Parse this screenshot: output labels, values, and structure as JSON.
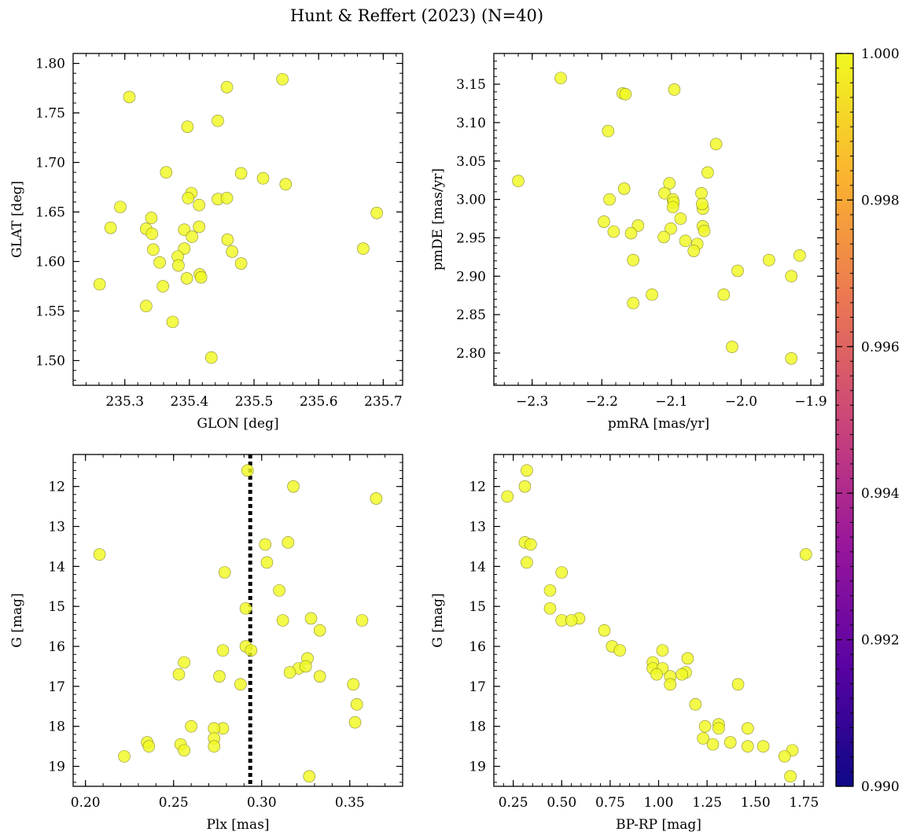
{
  "figure_title": "Hunt & Reffert (2023) (N=40)",
  "colors": {
    "point_fill": "#f0f921",
    "point_edge": "#8a8a30",
    "vline": "#000000",
    "colormap": [
      "#0d0887",
      "#5b02a3",
      "#9a179b",
      "#cb4678",
      "#eb7852",
      "#fbb32f",
      "#f0f921"
    ]
  },
  "colorbar": {
    "min": 0.99,
    "max": 1.0,
    "ticks": [
      0.99,
      0.992,
      0.994,
      0.996,
      0.998,
      1.0
    ],
    "tick_labels": [
      "0.990",
      "0.992",
      "0.994",
      "0.996",
      "0.998",
      "1.000"
    ]
  },
  "chart_data": [
    {
      "type": "scatter",
      "id": "glon-glat",
      "xlabel": "GLON [deg]",
      "ylabel": "GLAT [deg]",
      "xlim": [
        235.22,
        235.73
      ],
      "ylim": [
        1.475,
        1.81
      ],
      "y_inverted": false,
      "xticks": [
        235.3,
        235.4,
        235.5,
        235.6,
        235.7
      ],
      "xtick_labels": [
        "235.3",
        "235.4",
        "235.5",
        "235.6",
        "235.7"
      ],
      "yticks": [
        1.5,
        1.55,
        1.6,
        1.65,
        1.7,
        1.75,
        1.8
      ],
      "ytick_labels": [
        "1.50",
        "1.55",
        "1.60",
        "1.65",
        "1.70",
        "1.75",
        "1.80"
      ],
      "x_minor": 0.02,
      "y_minor": 0.01,
      "x": [
        235.307,
        235.544,
        235.458,
        235.397,
        235.444,
        235.364,
        235.48,
        235.514,
        235.549,
        235.403,
        235.444,
        235.398,
        235.458,
        235.415,
        235.69,
        235.293,
        235.278,
        235.341,
        235.333,
        235.415,
        235.392,
        235.342,
        235.404,
        235.459,
        235.392,
        235.344,
        235.466,
        235.669,
        235.382,
        235.354,
        235.48,
        235.383,
        235.416,
        235.261,
        235.396,
        235.418,
        235.359,
        235.333,
        235.374,
        235.434
      ],
      "y": [
        1.766,
        1.784,
        1.776,
        1.736,
        1.742,
        1.69,
        1.689,
        1.684,
        1.678,
        1.669,
        1.663,
        1.664,
        1.664,
        1.657,
        1.649,
        1.655,
        1.634,
        1.644,
        1.633,
        1.635,
        1.632,
        1.628,
        1.625,
        1.622,
        1.613,
        1.612,
        1.61,
        1.613,
        1.605,
        1.599,
        1.598,
        1.596,
        1.587,
        1.577,
        1.583,
        1.584,
        1.575,
        1.555,
        1.539,
        1.503
      ],
      "c": [
        1,
        1,
        1,
        1,
        1,
        1,
        1,
        1,
        1,
        1,
        1,
        1,
        1,
        1,
        1,
        1,
        1,
        1,
        1,
        1,
        1,
        1,
        1,
        1,
        1,
        1,
        1,
        1,
        1,
        1,
        1,
        1,
        1,
        1,
        1,
        1,
        1,
        1,
        1,
        1
      ],
      "vline": null
    },
    {
      "type": "scatter",
      "id": "pmra-pmde",
      "xlabel": "pmRA [mas/yr]",
      "ylabel": "pmDE [mas/yr]",
      "xlim": [
        -2.355,
        -1.882
      ],
      "ylim": [
        2.758,
        3.19
      ],
      "y_inverted": false,
      "xticks": [
        -2.3,
        -2.2,
        -2.1,
        -2.0,
        -1.9
      ],
      "xtick_labels": [
        "−2.3",
        "−2.2",
        "−2.1",
        "−2.0",
        "−1.9"
      ],
      "yticks": [
        2.8,
        2.85,
        2.9,
        2.95,
        3.0,
        3.05,
        3.1,
        3.15
      ],
      "ytick_labels": [
        "2.80",
        "2.85",
        "2.90",
        "2.95",
        "3.00",
        "3.05",
        "3.10",
        "3.15"
      ],
      "x_minor": 0.02,
      "y_minor": 0.01,
      "x": [
        -2.259,
        -2.17,
        -2.166,
        -2.096,
        -2.191,
        -2.036,
        -2.048,
        -2.32,
        -2.103,
        -2.11,
        -2.057,
        -2.098,
        -2.189,
        -2.168,
        -2.097,
        -2.098,
        -2.055,
        -2.087,
        -2.056,
        -2.197,
        -2.148,
        -2.055,
        -2.053,
        -2.101,
        -2.183,
        -2.158,
        -2.111,
        -2.08,
        -2.063,
        -2.068,
        -1.96,
        -1.916,
        -2.155,
        -2.005,
        -1.928,
        -2.025,
        -2.128,
        -2.155,
        -2.013,
        -1.928
      ],
      "y": [
        3.158,
        3.138,
        3.137,
        3.143,
        3.089,
        3.072,
        3.035,
        3.024,
        3.021,
        3.008,
        3.008,
        3.0,
        3.0,
        3.014,
        2.996,
        2.99,
        2.988,
        2.975,
        2.994,
        2.971,
        2.966,
        2.965,
        2.959,
        2.962,
        2.958,
        2.956,
        2.951,
        2.946,
        2.942,
        2.933,
        2.921,
        2.927,
        2.921,
        2.907,
        2.9,
        2.876,
        2.876,
        2.865,
        2.808,
        2.793
      ],
      "c": [
        1,
        1,
        1,
        1,
        1,
        1,
        1,
        1,
        1,
        1,
        1,
        1,
        1,
        1,
        1,
        1,
        1,
        1,
        1,
        1,
        1,
        1,
        1,
        1,
        1,
        1,
        1,
        1,
        1,
        1,
        1,
        1,
        1,
        1,
        1,
        1,
        1,
        1,
        1,
        1
      ],
      "vline": null
    },
    {
      "type": "scatter",
      "id": "plx-g",
      "xlabel": "Plx [mas]",
      "ylabel": "G [mag]",
      "xlim": [
        0.193,
        0.38
      ],
      "ylim": [
        11.2,
        19.5
      ],
      "y_inverted": true,
      "xticks": [
        0.2,
        0.25,
        0.3,
        0.35
      ],
      "xtick_labels": [
        "0.20",
        "0.25",
        "0.30",
        "0.35"
      ],
      "yticks": [
        12,
        13,
        14,
        15,
        16,
        17,
        18,
        19
      ],
      "ytick_labels": [
        "12",
        "13",
        "14",
        "15",
        "16",
        "17",
        "18",
        "19"
      ],
      "x_minor": 0.01,
      "y_minor": 0.2,
      "x": [
        0.292,
        0.318,
        0.365,
        0.208,
        0.302,
        0.315,
        0.303,
        0.279,
        0.31,
        0.291,
        0.328,
        0.357,
        0.312,
        0.333,
        0.291,
        0.278,
        0.294,
        0.326,
        0.256,
        0.321,
        0.316,
        0.325,
        0.253,
        0.276,
        0.333,
        0.352,
        0.288,
        0.354,
        0.353,
        0.26,
        0.278,
        0.273,
        0.273,
        0.235,
        0.236,
        0.254,
        0.273,
        0.256,
        0.222,
        0.327
      ],
      "y": [
        11.6,
        12.0,
        12.3,
        13.7,
        13.45,
        13.4,
        13.9,
        14.15,
        14.6,
        15.05,
        15.3,
        15.35,
        15.35,
        15.6,
        16.0,
        16.1,
        16.1,
        16.3,
        16.4,
        16.55,
        16.65,
        16.5,
        16.7,
        16.75,
        16.75,
        16.95,
        16.95,
        17.45,
        17.9,
        18.0,
        18.05,
        18.05,
        18.3,
        18.4,
        18.5,
        18.45,
        18.5,
        18.6,
        18.75,
        19.25
      ],
      "c": [
        1,
        1,
        1,
        1,
        1,
        1,
        1,
        1,
        1,
        1,
        1,
        1,
        1,
        1,
        1,
        1,
        1,
        1,
        1,
        1,
        1,
        1,
        1,
        1,
        1,
        1,
        1,
        1,
        1,
        1,
        1,
        1,
        1,
        1,
        1,
        1,
        1,
        1,
        1,
        1
      ],
      "vline": 0.2935
    },
    {
      "type": "scatter",
      "id": "bprp-g",
      "xlabel": "BP-RP [mag]",
      "ylabel": "G [mag]",
      "xlim": [
        0.15,
        1.85
      ],
      "ylim": [
        11.2,
        19.5
      ],
      "y_inverted": true,
      "xticks": [
        0.25,
        0.5,
        0.75,
        1.0,
        1.25,
        1.5,
        1.75
      ],
      "xtick_labels": [
        "0.25",
        "0.50",
        "0.75",
        "1.00",
        "1.25",
        "1.50",
        "1.75"
      ],
      "x_minor": 0.05,
      "y_minor": 0.2,
      "yticks": [
        12,
        13,
        14,
        15,
        16,
        17,
        18,
        19
      ],
      "ytick_labels": [
        "12",
        "13",
        "14",
        "15",
        "16",
        "17",
        "18",
        "19"
      ],
      "x": [
        0.32,
        0.31,
        0.22,
        0.31,
        0.34,
        0.32,
        1.76,
        0.5,
        0.44,
        0.44,
        0.59,
        0.5,
        0.55,
        0.72,
        0.76,
        0.8,
        1.02,
        1.15,
        0.97,
        0.97,
        1.02,
        0.99,
        1.14,
        1.12,
        1.06,
        1.06,
        1.41,
        1.19,
        1.31,
        1.24,
        1.31,
        1.46,
        1.23,
        1.37,
        1.28,
        1.46,
        1.54,
        1.69,
        1.65,
        1.68
      ],
      "y": [
        11.6,
        12.0,
        12.25,
        13.4,
        13.45,
        13.9,
        13.7,
        14.15,
        14.6,
        15.05,
        15.3,
        15.35,
        15.35,
        15.6,
        16.0,
        16.1,
        16.1,
        16.3,
        16.4,
        16.55,
        16.55,
        16.7,
        16.65,
        16.7,
        16.75,
        16.95,
        16.95,
        17.45,
        17.95,
        18.0,
        18.05,
        18.05,
        18.3,
        18.4,
        18.45,
        18.5,
        18.5,
        18.6,
        18.75,
        19.25
      ],
      "c": [
        1,
        1,
        1,
        1,
        1,
        1,
        1,
        1,
        1,
        1,
        1,
        1,
        1,
        1,
        1,
        1,
        1,
        1,
        1,
        1,
        1,
        1,
        1,
        1,
        1,
        1,
        1,
        1,
        1,
        1,
        1,
        1,
        1,
        1,
        1,
        1,
        1,
        1,
        1,
        1
      ],
      "vline": null
    }
  ]
}
